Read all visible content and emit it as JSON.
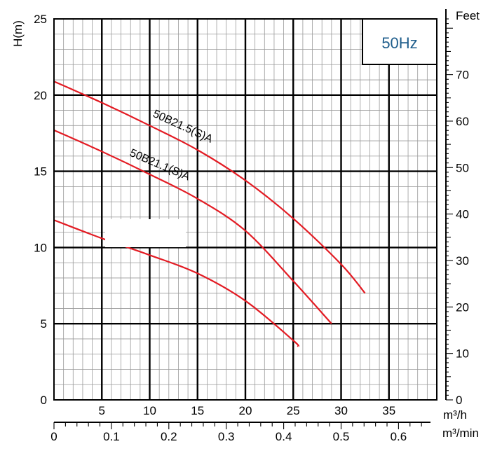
{
  "chart_data": {
    "type": "line",
    "badge": "50Hz",
    "ylabel": "H(m)",
    "ylabel_right": "Feet",
    "xlabel": "m³/h",
    "xlabel_secondary": "m³/min",
    "xlim": [
      0,
      40
    ],
    "ylim": [
      0,
      25
    ],
    "ylim_right": [
      0,
      82
    ],
    "grid": "on",
    "x_ticks": [
      5,
      10,
      15,
      20,
      25,
      30,
      35
    ],
    "x_ticks_secondary": [
      "0",
      "0.1",
      "0.2",
      "0.3",
      "0.4",
      "0.5",
      "0.6"
    ],
    "y_ticks": [
      0,
      5,
      10,
      15,
      20,
      25
    ],
    "y_ticks_right": [
      0,
      10,
      20,
      30,
      40,
      50,
      60,
      70
    ],
    "series": [
      {
        "name": "50B21.5(S)A",
        "x": [
          0,
          5,
          10,
          15,
          20,
          25,
          30,
          32.5
        ],
        "y": [
          20.9,
          19.5,
          18.0,
          16.4,
          14.4,
          11.9,
          8.9,
          7.0
        ]
      },
      {
        "name": "50B21.1(S)A",
        "x": [
          0,
          5,
          10,
          15,
          20,
          25,
          29
        ],
        "y": [
          17.7,
          16.3,
          14.8,
          13.2,
          11.1,
          7.8,
          5.0
        ]
      },
      {
        "name": "",
        "x": [
          0,
          5,
          10,
          15,
          20,
          25,
          25.5
        ],
        "y": [
          11.8,
          10.6,
          9.5,
          8.3,
          6.5,
          3.9,
          3.5
        ]
      }
    ],
    "colors": {
      "curve": "#e31b23",
      "grid_minor": "#9a9a9a",
      "grid_major": "#000000",
      "badge_text": "#1f5e8c"
    }
  }
}
